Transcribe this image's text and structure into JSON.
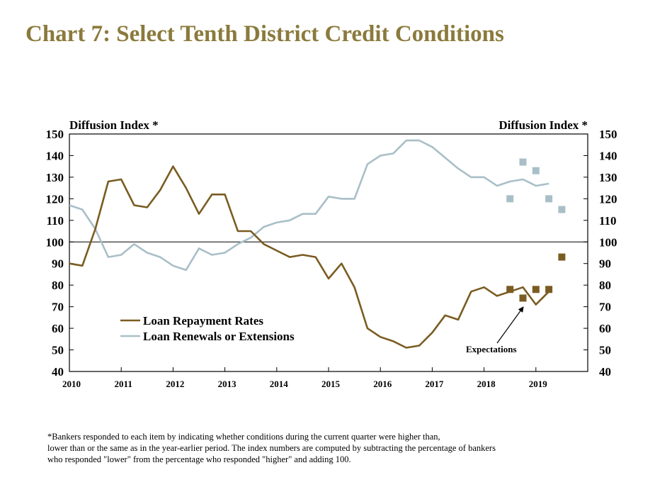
{
  "title": "Chart 7: Select Tenth District Credit Conditions",
  "footnote": [
    "*Bankers responded to each item by indicating whether conditions during the current quarter were higher than,",
    "lower than or the same as in the year-earlier period.  The index numbers are computed by subtracting the percentage of bankers",
    "who responded \"lower\" from the percentage who responded \"higher\" and adding 100."
  ],
  "colors": {
    "title": "#8a7a3c",
    "repayment": "#7a5c22",
    "renewals": "#a9bfc8"
  },
  "chart_data": {
    "type": "line",
    "ylabel_left": "Diffusion Index *",
    "ylabel_right": "Diffusion Index *",
    "ylim": [
      40,
      150
    ],
    "yticks": [
      40,
      50,
      60,
      70,
      80,
      90,
      100,
      110,
      120,
      130,
      140,
      150
    ],
    "xlim": [
      2010,
      2020
    ],
    "xticks": [
      "2010",
      "2011",
      "2012",
      "2013",
      "2014",
      "2015",
      "2016",
      "2017",
      "2018",
      "2019"
    ],
    "reference_line": 100,
    "legend_position": "lower-left",
    "series": [
      {
        "name": "Loan Repayment Rates",
        "color": "#7a5c22",
        "x": [
          2010.0,
          2010.25,
          2010.5,
          2010.75,
          2011.0,
          2011.25,
          2011.5,
          2011.75,
          2012.0,
          2012.25,
          2012.5,
          2012.75,
          2013.0,
          2013.25,
          2013.5,
          2013.75,
          2014.0,
          2014.25,
          2014.5,
          2014.75,
          2015.0,
          2015.25,
          2015.5,
          2015.75,
          2016.0,
          2016.25,
          2016.5,
          2016.75,
          2017.0,
          2017.25,
          2017.5,
          2017.75,
          2018.0,
          2018.25,
          2018.5,
          2018.75,
          2019.0,
          2019.25
        ],
        "values": [
          90,
          89,
          106,
          128,
          129,
          117,
          116,
          124,
          135,
          125,
          113,
          122,
          122,
          105,
          105,
          99,
          96,
          93,
          94,
          93,
          83,
          90,
          79,
          60,
          56,
          54,
          51,
          52,
          58,
          66,
          64,
          77,
          79,
          75,
          77,
          79,
          71,
          77
        ]
      },
      {
        "name": "Loan Renewals or Extensions",
        "color": "#a9bfc8",
        "x": [
          2010.0,
          2010.25,
          2010.5,
          2010.75,
          2011.0,
          2011.25,
          2011.5,
          2011.75,
          2012.0,
          2012.25,
          2012.5,
          2012.75,
          2013.0,
          2013.25,
          2013.5,
          2013.75,
          2014.0,
          2014.25,
          2014.5,
          2014.75,
          2015.0,
          2015.25,
          2015.5,
          2015.75,
          2016.0,
          2016.25,
          2016.5,
          2016.75,
          2017.0,
          2017.25,
          2017.5,
          2017.75,
          2018.0,
          2018.25,
          2018.5,
          2018.75,
          2019.0,
          2019.25
        ],
        "values": [
          117,
          115,
          106,
          93,
          94,
          99,
          95,
          93,
          89,
          87,
          97,
          94,
          95,
          99,
          102,
          107,
          109,
          110,
          113,
          113,
          121,
          120,
          120,
          136,
          140,
          141,
          147,
          147,
          144,
          139,
          134,
          130,
          130,
          126,
          128,
          129,
          126,
          127
        ]
      }
    ],
    "expectations": [
      {
        "series": "Loan Repayment Rates",
        "color": "#7a5c22",
        "x": [
          2018.5,
          2018.75,
          2019.0,
          2019.25,
          2019.5
        ],
        "values": [
          78,
          74,
          78,
          78,
          93
        ]
      },
      {
        "series": "Loan Renewals or Extensions",
        "color": "#a9bfc8",
        "x": [
          2018.5,
          2018.75,
          2019.0,
          2019.25,
          2019.5
        ],
        "values": [
          120,
          137,
          133,
          120,
          115
        ]
      }
    ],
    "annotation": "Expectations"
  }
}
